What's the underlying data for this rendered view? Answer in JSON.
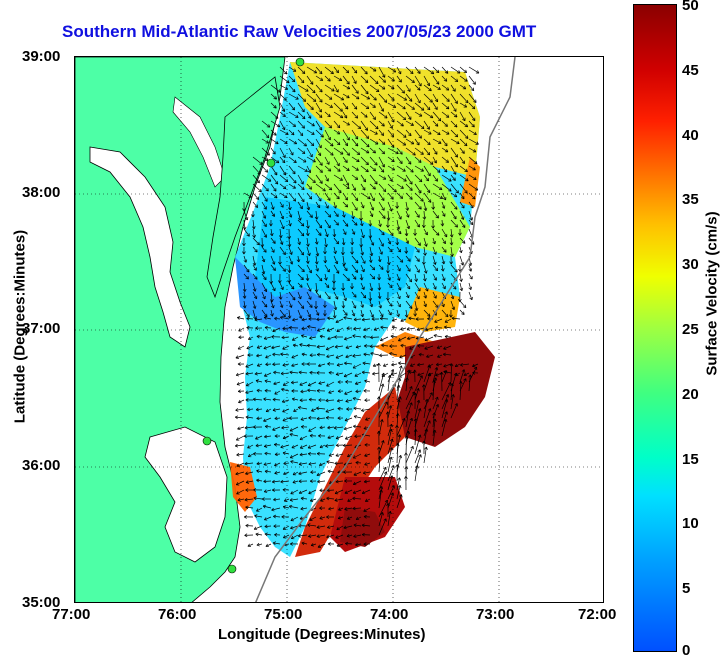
{
  "title": "Southern Mid-Atlantic Raw Velocities 2007/05/23 2000 GMT",
  "xlabel": "Longitude (Degrees:Minutes)",
  "ylabel": "Latitude (Degrees:Minutes)",
  "colorbar_label": "Surface Velocity (cm/s)",
  "x_ticks": [
    "77:00",
    "76:00",
    "75:00",
    "74:00",
    "73:00",
    "72:00"
  ],
  "y_ticks": [
    "39:00",
    "38:00",
    "37:00",
    "36:00",
    "35:00"
  ],
  "colorbar_ticks": [
    "50",
    "45",
    "40",
    "35",
    "30",
    "25",
    "20",
    "15",
    "10",
    "5",
    "0"
  ],
  "colors": {
    "land": "#4dffa6",
    "title": "#1010e0",
    "arrows": "#000000"
  }
}
